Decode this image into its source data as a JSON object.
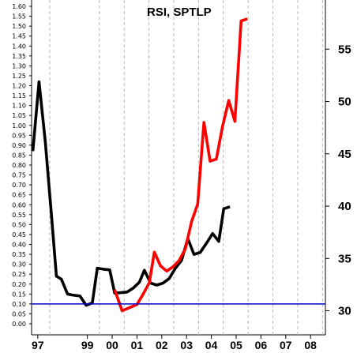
{
  "chart_data": {
    "type": "line",
    "title": "RSI, SPTLP",
    "left_axis": {
      "ylim": [
        0,
        1.6
      ],
      "ticks": [
        "0.00",
        "0.05",
        "0.10",
        "0.15",
        "0.20",
        "0.25",
        "0.30",
        "0.35",
        "0.40",
        "0.45",
        "0.50",
        "0.55",
        "0.60",
        "0.65",
        "0.70",
        "0.75",
        "0.80",
        "0.85",
        "0.90",
        "0.95",
        "1.00",
        "1.05",
        "1.10",
        "1.15",
        "1.20",
        "1.25",
        "1.30",
        "1.35",
        "1.40",
        "1.45",
        "1.50",
        "1.55",
        "1.60"
      ]
    },
    "right_axis": {
      "ylim": [
        27.7,
        59.4
      ],
      "ticks": [
        "30",
        "35",
        "40",
        "45",
        "50",
        "55"
      ]
    },
    "x_axis": {
      "xlim": [
        1996.75,
        2008.6
      ],
      "ticks": [
        {
          "label": "97",
          "x": 1997
        },
        {
          "label": "99",
          "x": 1999
        },
        {
          "label": "00",
          "x": 2000
        },
        {
          "label": "01",
          "x": 2001
        },
        {
          "label": "02",
          "x": 2002
        },
        {
          "label": "03",
          "x": 2003
        },
        {
          "label": "04",
          "x": 2004
        },
        {
          "label": "05",
          "x": 2005
        },
        {
          "label": "06",
          "x": 2006
        },
        {
          "label": "07",
          "x": 2007
        },
        {
          "label": "08",
          "x": 2008
        }
      ]
    },
    "grid": "vertical dashed",
    "series": [
      {
        "axis": "left",
        "color": "#000000",
        "points": [
          [
            1996.8,
            0.87
          ],
          [
            1997.05,
            1.22
          ],
          [
            1997.3,
            0.92
          ],
          [
            1997.55,
            0.55
          ],
          [
            1997.75,
            0.24
          ],
          [
            1997.95,
            0.225
          ],
          [
            1998.2,
            0.15
          ],
          [
            1998.4,
            0.145
          ],
          [
            1998.7,
            0.14
          ],
          [
            1998.95,
            0.093
          ],
          [
            1999.2,
            0.105
          ],
          [
            1999.4,
            0.28
          ],
          [
            1999.65,
            0.275
          ],
          [
            1999.9,
            0.272
          ],
          [
            2000.1,
            0.155
          ],
          [
            2000.35,
            0.157
          ],
          [
            2000.6,
            0.16
          ],
          [
            2000.85,
            0.18
          ],
          [
            2001.1,
            0.21
          ],
          [
            2001.3,
            0.27
          ],
          [
            2001.55,
            0.205
          ],
          [
            2001.8,
            0.195
          ],
          [
            2002.05,
            0.205
          ],
          [
            2002.3,
            0.228
          ],
          [
            2002.55,
            0.28
          ],
          [
            2002.8,
            0.32
          ],
          [
            2003.05,
            0.43
          ],
          [
            2003.3,
            0.35
          ],
          [
            2003.55,
            0.36
          ],
          [
            2003.8,
            0.405
          ],
          [
            2004.05,
            0.455
          ],
          [
            2004.3,
            0.415
          ],
          [
            2004.5,
            0.58
          ],
          [
            2004.75,
            0.59
          ]
        ]
      },
      {
        "axis": "right",
        "color": "#ff0000",
        "points": [
          [
            2000.1,
            32.0
          ],
          [
            2000.4,
            30.0
          ],
          [
            2000.7,
            30.3
          ],
          [
            2001.0,
            30.6
          ],
          [
            2001.25,
            31.6
          ],
          [
            2001.5,
            32.7
          ],
          [
            2001.7,
            35.6
          ],
          [
            2001.95,
            34.3
          ],
          [
            2002.2,
            33.8
          ],
          [
            2002.45,
            34.2
          ],
          [
            2002.7,
            34.8
          ],
          [
            2002.95,
            35.9
          ],
          [
            2003.2,
            38.5
          ],
          [
            2003.45,
            40.2
          ],
          [
            2003.7,
            48.0
          ],
          [
            2003.95,
            44.3
          ],
          [
            2004.2,
            44.5
          ],
          [
            2004.45,
            47.6
          ],
          [
            2004.7,
            50.1
          ],
          [
            2004.95,
            48.1
          ],
          [
            2005.2,
            57.7
          ],
          [
            2005.45,
            57.9
          ]
        ]
      },
      {
        "axis": "left",
        "color": "#0000cc",
        "type": "reference",
        "value": 0.1
      }
    ]
  }
}
